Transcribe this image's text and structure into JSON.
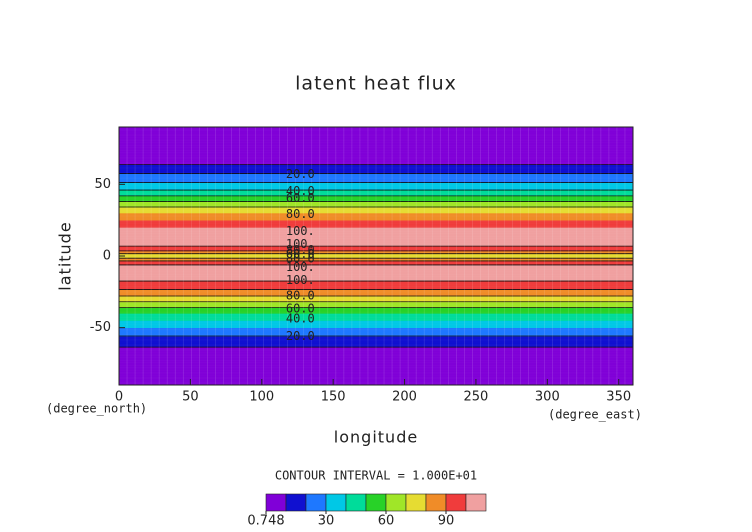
{
  "chart_data": {
    "type": "contour",
    "title": "latent heat flux",
    "xlabel": "longitude",
    "ylabel": "latitude",
    "xunit": "(degree_east)",
    "yunit": "(degree_north)",
    "interval_note": "CONTOUR INTERVAL = 1.000E+01",
    "xlim": [
      0,
      360
    ],
    "xticks": [
      0,
      50,
      100,
      150,
      200,
      250,
      300,
      350
    ],
    "ylim": [
      -90,
      90
    ],
    "yticks": [
      -50,
      0,
      50
    ],
    "latitudes": [
      -90,
      -85,
      -80,
      -75,
      -70,
      -65,
      -60,
      -55,
      -50,
      -45,
      -40,
      -35,
      -30,
      -25,
      -20,
      -15,
      -10,
      -5,
      0,
      5,
      10,
      15,
      20,
      25,
      30,
      35,
      40,
      45,
      50,
      55,
      60,
      65,
      70,
      75,
      80,
      85,
      90
    ],
    "values": [
      1,
      1.5,
      2,
      3,
      5,
      8,
      15,
      21,
      30,
      40,
      50,
      62,
      75,
      87,
      96,
      104,
      106,
      98,
      72,
      97,
      105,
      104,
      100,
      90,
      80,
      68,
      55,
      42,
      32,
      24,
      16,
      8,
      5,
      3,
      2,
      1.5,
      1
    ],
    "levels": [
      0.748,
      10,
      20,
      30,
      40,
      50,
      60,
      70,
      80,
      90,
      100,
      110
    ],
    "colors": [
      "#8000d8",
      "#1010d0",
      "#1e78ff",
      "#00c8e6",
      "#00dc9a",
      "#28d228",
      "#a0e628",
      "#e6dc32",
      "#f08c28",
      "#f03c3c",
      "#f0a0a0"
    ],
    "colorbar_ticks": [
      0.748,
      30,
      60,
      90
    ],
    "contour_labels": [
      {
        "value": 20,
        "label": "20.0",
        "lat": 57
      },
      {
        "value": 40,
        "label": "40.0",
        "lat": 45
      },
      {
        "value": 60,
        "label": "60.0",
        "lat": 40
      },
      {
        "value": 80,
        "label": "80.0",
        "lat": 29
      },
      {
        "value": 100,
        "label": "100.",
        "lat": 17
      },
      {
        "value": 100,
        "label": "100.",
        "lat": 8
      },
      {
        "value": 80,
        "label": "80.0",
        "lat": 4
      },
      {
        "value": 60,
        "label": "60.0",
        "lat": 1
      },
      {
        "value": 80,
        "label": "80.0",
        "lat": -2
      },
      {
        "value": 100,
        "label": "100.",
        "lat": -8
      },
      {
        "value": 100,
        "label": "100.",
        "lat": -17
      },
      {
        "value": 80,
        "label": "80.0",
        "lat": -28
      },
      {
        "value": 60,
        "label": "60.0",
        "lat": -37
      },
      {
        "value": 40,
        "label": "40.0",
        "lat": -44
      },
      {
        "value": 20,
        "label": "20.0",
        "lat": -56
      }
    ]
  }
}
